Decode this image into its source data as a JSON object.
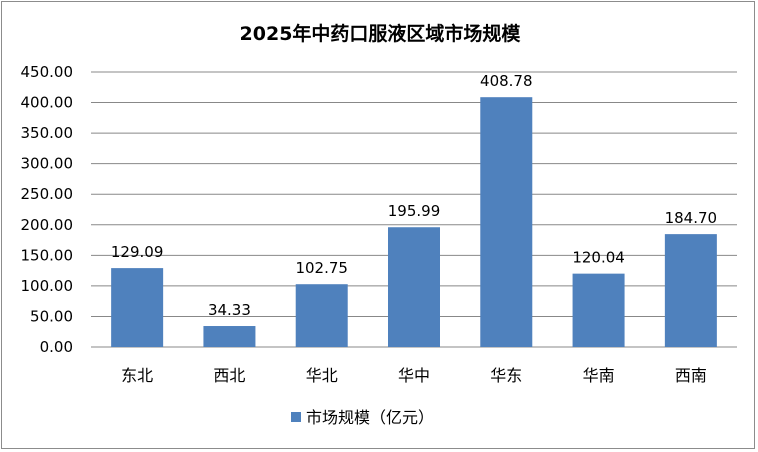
{
  "chart_data": {
    "type": "bar",
    "title": "2025年中药口服液区域市场规模",
    "categories": [
      "东北",
      "西北",
      "华北",
      "华中",
      "华东",
      "华南",
      "西南"
    ],
    "series": [
      {
        "name": "市场规模（亿元）",
        "values": [
          129.09,
          34.33,
          102.75,
          195.99,
          408.78,
          120.04,
          184.7
        ]
      }
    ],
    "data_labels": [
      "129.09",
      "34.33",
      "102.75",
      "195.99",
      "408.78",
      "120.04",
      "184.70"
    ],
    "y_ticks": [
      "0.00",
      "50.00",
      "100.00",
      "150.00",
      "200.00",
      "250.00",
      "300.00",
      "350.00",
      "400.00",
      "450.00"
    ],
    "ylim": [
      0,
      450
    ],
    "grid": true,
    "legend_position": "bottom",
    "bar_color": "#4f81bd",
    "grid_color": "#888888"
  }
}
